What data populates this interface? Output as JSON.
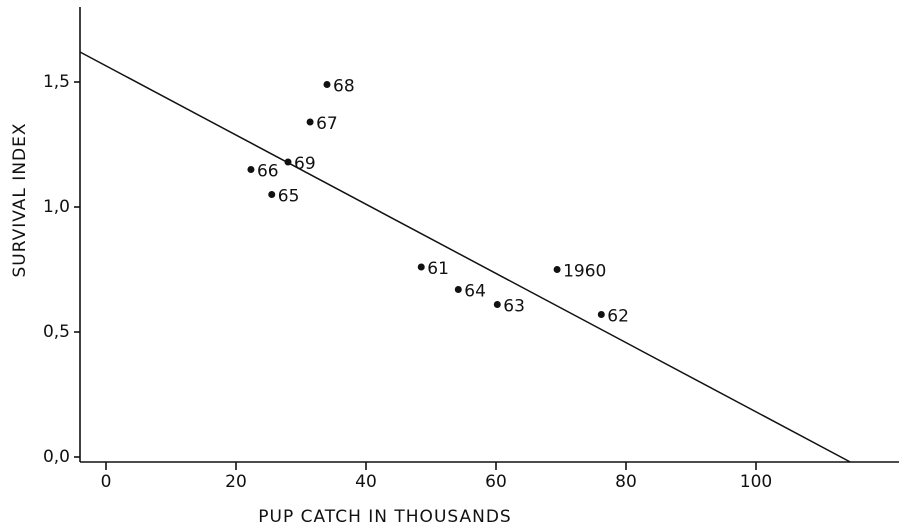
{
  "chart_data": {
    "type": "scatter",
    "x_label": "PUP CATCH IN THOUSANDS",
    "y_label": "SURVIVAL INDEX",
    "x": [
      34.0,
      31.4,
      28.0,
      22.3,
      25.5,
      48.5,
      54.2,
      60.2,
      69.4,
      76.2
    ],
    "values": [
      1.49,
      1.34,
      1.18,
      1.15,
      1.05,
      0.76,
      0.67,
      0.61,
      0.75,
      0.57
    ],
    "point_labels": [
      "68",
      "67",
      "69",
      "66",
      "65",
      "61",
      "64",
      "63",
      "1960",
      "62"
    ],
    "color": "#111111",
    "fit_line": {
      "x": [
        -4,
        114.5
      ],
      "values": [
        1.62,
        -0.02
      ]
    },
    "xlim": [
      -4,
      122
    ],
    "ylim": [
      -0.02,
      1.8
    ],
    "xticks": [
      0,
      20,
      40,
      60,
      80,
      100
    ],
    "yticks": [
      {
        "value": 0,
        "label": "0,0"
      },
      {
        "value": 0.5,
        "label": "0,5"
      },
      {
        "value": 1.0,
        "label": "1,0"
      },
      {
        "value": 1.5,
        "label": "1,5"
      }
    ]
  }
}
